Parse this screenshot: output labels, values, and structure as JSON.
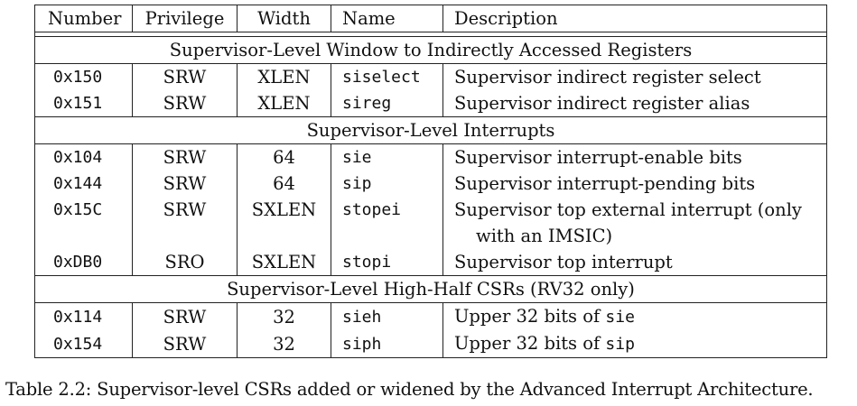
{
  "table": {
    "headers": {
      "number": "Number",
      "privilege": "Privilege",
      "width": "Width",
      "name": "Name",
      "description": "Description"
    },
    "sections": [
      {
        "title": "Supervisor-Level Window to Indirectly Accessed Registers",
        "rows": [
          {
            "number": "0x150",
            "privilege": "SRW",
            "width": "XLEN",
            "name": "siselect",
            "description": "Supervisor indirect register select"
          },
          {
            "number": "0x151",
            "privilege": "SRW",
            "width": "XLEN",
            "name": "sireg",
            "description": "Supervisor indirect register alias"
          }
        ]
      },
      {
        "title": "Supervisor-Level Interrupts",
        "rows": [
          {
            "number": "0x104",
            "privilege": "SRW",
            "width": "64",
            "name": "sie",
            "description": "Supervisor interrupt-enable bits"
          },
          {
            "number": "0x144",
            "privilege": "SRW",
            "width": "64",
            "name": "sip",
            "description": "Supervisor interrupt-pending bits"
          },
          {
            "number": "0x15C",
            "privilege": "SRW",
            "width": "SXLEN",
            "name": "stopei",
            "description": "Supervisor top external interrupt (only",
            "description_cont": "with an IMSIC)"
          },
          {
            "number": "0xDB0",
            "privilege": "SRO",
            "width": "SXLEN",
            "name": "stopi",
            "description": "Supervisor top interrupt"
          }
        ]
      },
      {
        "title": "Supervisor-Level High-Half CSRs (RV32 only)",
        "rows": [
          {
            "number": "0x114",
            "privilege": "SRW",
            "width": "32",
            "name": "sieh",
            "description_prefix": "Upper 32 bits of ",
            "description_code": "sie"
          },
          {
            "number": "0x154",
            "privilege": "SRW",
            "width": "32",
            "name": "siph",
            "description_prefix": "Upper 32 bits of ",
            "description_code": "sip"
          }
        ]
      }
    ]
  },
  "caption": "Table 2.2: Supervisor-level CSRs added or widened by the Advanced Interrupt Architecture."
}
